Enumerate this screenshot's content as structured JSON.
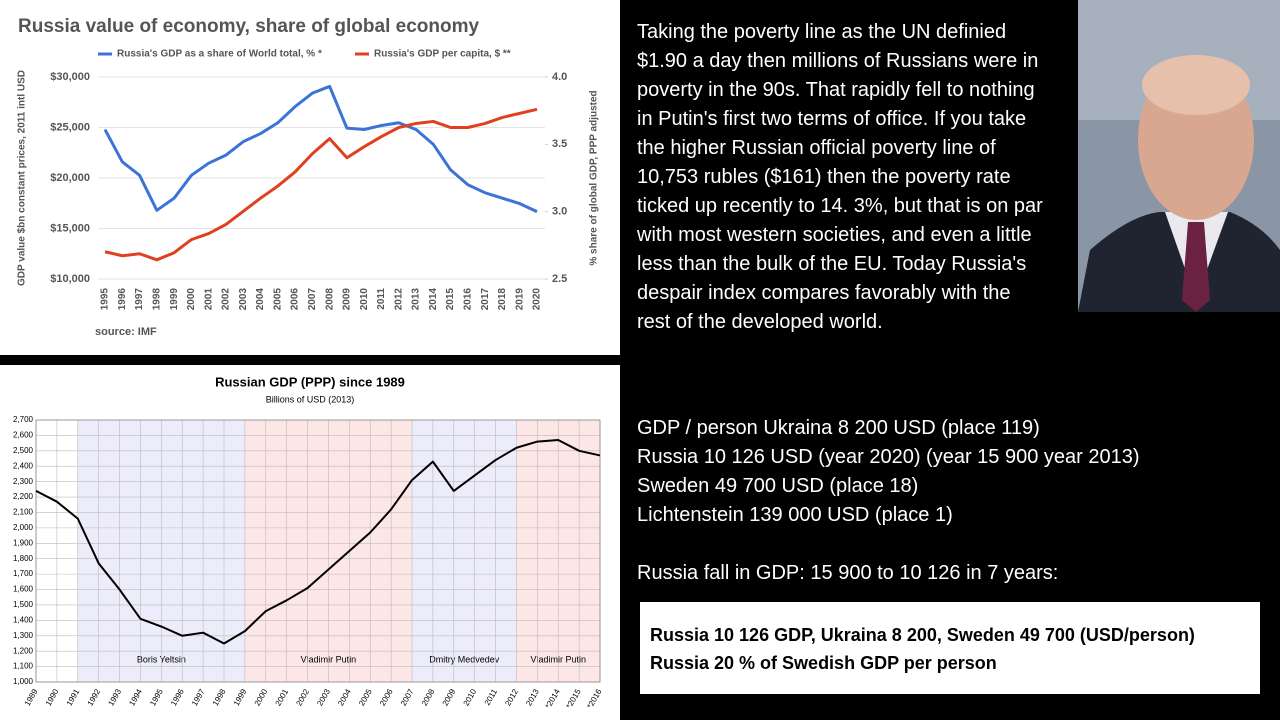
{
  "chart_data": [
    {
      "type": "line",
      "title": "Russia value of economy, share of global economy",
      "y_label": "GDP value $bn constant prices, 2011 intl USD",
      "y2_label": "% share of global GDP, PPP adjusted",
      "source": "source: IMF",
      "categories": [
        "1995",
        "1996",
        "1997",
        "1998",
        "1999",
        "2000",
        "2001",
        "2002",
        "2003",
        "2004",
        "2005",
        "2006",
        "2007",
        "2008",
        "2009",
        "2010",
        "2011",
        "2012",
        "2013",
        "2014",
        "2015",
        "2016",
        "2017",
        "2018",
        "2019",
        "2020"
      ],
      "series": [
        {
          "name": "Russia's GDP as a share of World total, % *",
          "color": "#3b73d9",
          "axis": "y2",
          "values": [
            3.61,
            3.37,
            3.27,
            3.01,
            3.1,
            3.27,
            3.36,
            3.42,
            3.52,
            3.58,
            3.66,
            3.78,
            3.88,
            3.93,
            3.62,
            3.61,
            3.64,
            3.66,
            3.61,
            3.5,
            3.31,
            3.2,
            3.14,
            3.1,
            3.06,
            3.0
          ]
        },
        {
          "name": "Russia's GDP per capita, $ **",
          "color": "#e0401f",
          "values": [
            12700,
            12300,
            12500,
            11900,
            12600,
            13900,
            14500,
            15400,
            16700,
            18000,
            19200,
            20600,
            22400,
            23900,
            22000,
            23100,
            24100,
            25000,
            25400,
            25600,
            25000,
            25000,
            25400,
            26000,
            26400,
            26800
          ]
        }
      ],
      "ylim": [
        10000,
        30000
      ],
      "yticks": [
        {
          "value": 10000,
          "label": "$10,000"
        },
        {
          "value": 15000,
          "label": "$15,000"
        },
        {
          "value": 20000,
          "label": "$20,000"
        },
        {
          "value": 25000,
          "label": "$25,000"
        },
        {
          "value": 30000,
          "label": "$30,000"
        }
      ],
      "y2lim": [
        2.5,
        4.0
      ],
      "y2ticks": [
        2.5,
        {
          "value": 3,
          "label": "3.0"
        },
        3.5,
        {
          "value": 4,
          "label": "4.0"
        }
      ],
      "grid": true
    },
    {
      "type": "line",
      "title": "Russian GDP (PPP) since 1989",
      "subtitle": "Billions of USD (2013)",
      "categories": [
        "1989",
        "1990",
        "1991",
        "1992",
        "1993",
        "1994",
        "1995",
        "1996",
        "1997",
        "1998",
        "1999",
        "2000",
        "2001",
        "2002",
        "2003",
        "2004",
        "2005",
        "2006",
        "2007",
        "2008",
        "2009",
        "2010",
        "2011",
        "2012",
        "2013",
        "*2014",
        "*2015",
        "*2016"
      ],
      "values": [
        2240,
        2170,
        2060,
        1770,
        1600,
        1410,
        1360,
        1300,
        1320,
        1250,
        1330,
        1460,
        1530,
        1610,
        1730,
        1850,
        1970,
        2120,
        2310,
        2430,
        2240,
        2340,
        2440,
        2520,
        2560,
        2570,
        2500,
        2470
      ],
      "color": "#000000",
      "ylim": [
        1000,
        2700
      ],
      "yticks": [
        {
          "value": 1000,
          "label": "1,000"
        },
        {
          "value": 1100,
          "label": "1,100"
        },
        {
          "value": 1200,
          "label": "1,200"
        },
        {
          "value": 1300,
          "label": "1,300"
        },
        {
          "value": 1400,
          "label": "1,400"
        },
        {
          "value": 1500,
          "label": "1,500"
        },
        {
          "value": 1600,
          "label": "1,600"
        },
        {
          "value": 1700,
          "label": "1,700"
        },
        {
          "value": 1800,
          "label": "1,800"
        },
        {
          "value": 1900,
          "label": "1,900"
        },
        {
          "value": 2000,
          "label": "2,000"
        },
        {
          "value": 2100,
          "label": "2,100"
        },
        {
          "value": 2200,
          "label": "2,200"
        },
        {
          "value": 2300,
          "label": "2,300"
        },
        {
          "value": 2400,
          "label": "2,400"
        },
        {
          "value": 2500,
          "label": "2,500"
        },
        {
          "value": 2600,
          "label": "2,600"
        },
        {
          "value": 2700,
          "label": "2,700"
        }
      ],
      "grid": true,
      "periods": [
        {
          "label": "Boris Yeltsin",
          "start": "1991",
          "end": "1999",
          "color": "#ececfa"
        },
        {
          "label": "Vladimir Putin",
          "start": "1999",
          "end": "2007",
          "color": "#fde6e6"
        },
        {
          "label": "Dmitry Medvedev",
          "start": "2007",
          "end": "2012",
          "color": "#ececfa"
        },
        {
          "label": "Vladimir Putin",
          "start": "2012",
          "end": "*2016",
          "color": "#fde6e6"
        }
      ]
    }
  ],
  "text": {
    "paragraph": "Taking the poverty line as the UN definied $1.90 a day then millions of Russians were in poverty in the 90s. That rapidly fell to nothing in Putin's first two terms of office. If you take the higher Russian official poverty line of 10,753 rubles ($161) then the poverty rate ticked up recently to 14. 3%, but that is on par with most western societies, and even a little less than the bulk of the EU. Today Russia's despair index compares favorably with the rest of the developed world.",
    "gdp_lines": [
      "GDP / person Ukraina 8 200 USD (place 119)",
      "Russia 10 126 USD (year 2020) (year 15 900 year 2013)",
      "Sweden 49 700 USD (place 18)",
      "Lichtenstein 139 000 USD (place 1)"
    ],
    "fall": "Russia fall in GDP: 15 900 to 10 126 in 7 years:",
    "box": [
      "Russia 10 126 GDP, Ukraina 8 200, Sweden 49 700 (USD/person)",
      "Russia 20 % of Swedish GDP per person"
    ]
  }
}
